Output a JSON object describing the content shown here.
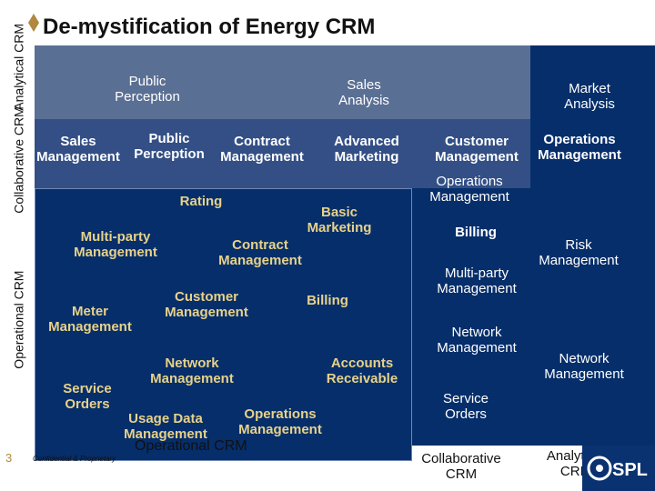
{
  "title": "De-mystification of Energy CRM",
  "slide_number": "3",
  "confidential": "Confidential & Proprietary",
  "side_labels": {
    "analytical": [
      "Analytical",
      "CRM"
    ],
    "collaborative": [
      "Collaborative",
      "CRM"
    ],
    "operational": [
      "Operational",
      "CRM"
    ]
  },
  "analytical_row": {
    "public_perception": [
      "Public",
      "Perception"
    ],
    "sales_analysis": [
      "Sales",
      "Analysis"
    ],
    "market_analysis": [
      "Market",
      "Analysis"
    ]
  },
  "collaborative_row": {
    "sales_management": [
      "Sales",
      "Management"
    ],
    "public_perception": [
      "Public",
      "Perception"
    ],
    "contract_management": [
      "Contract",
      "Management"
    ],
    "advanced_marketing": [
      "Advanced",
      "Marketing"
    ],
    "customer_management": [
      "Customer",
      "Management"
    ],
    "operations_management": [
      "Operations",
      "Management"
    ]
  },
  "operational_box": {
    "rating": "Rating",
    "basic_marketing": [
      "Basic",
      "Marketing"
    ],
    "multiparty_management": [
      "Multi-party",
      "Management"
    ],
    "contract_management": [
      "Contract",
      "Management"
    ],
    "customer_management": [
      "Customer",
      "Management"
    ],
    "billing": "Billing",
    "meter_management": [
      "Meter",
      "Management"
    ],
    "network_management": [
      "Network",
      "Management"
    ],
    "accounts_receivable": [
      "Accounts",
      "Receivable"
    ],
    "service_orders": [
      "Service",
      "Orders"
    ],
    "usage_data_management": [
      "Usage Data",
      "Management"
    ],
    "operations_management": [
      "Operations",
      "Management"
    ],
    "caption": "Operational CRM"
  },
  "collaborative_column": {
    "operations_management": [
      "Operations",
      "Management"
    ],
    "billing": "Billing",
    "multiparty_management": [
      "Multi-party",
      "Management"
    ],
    "network_management": [
      "Network",
      "Management"
    ],
    "service_orders": [
      "Service",
      "Orders"
    ],
    "caption": [
      "Collaborative",
      "CRM"
    ]
  },
  "analytical_column": {
    "risk_management": [
      "Risk",
      "Management"
    ],
    "network_management": [
      "Network",
      "Management"
    ],
    "caption": [
      "Analytical",
      "CRM"
    ]
  },
  "logo": "SPL",
  "colors": {
    "navy": "#062e6a",
    "analytical_box": "#5a6f94",
    "collaborative_box": "#334f86",
    "gold_text": "#e7d28a"
  }
}
